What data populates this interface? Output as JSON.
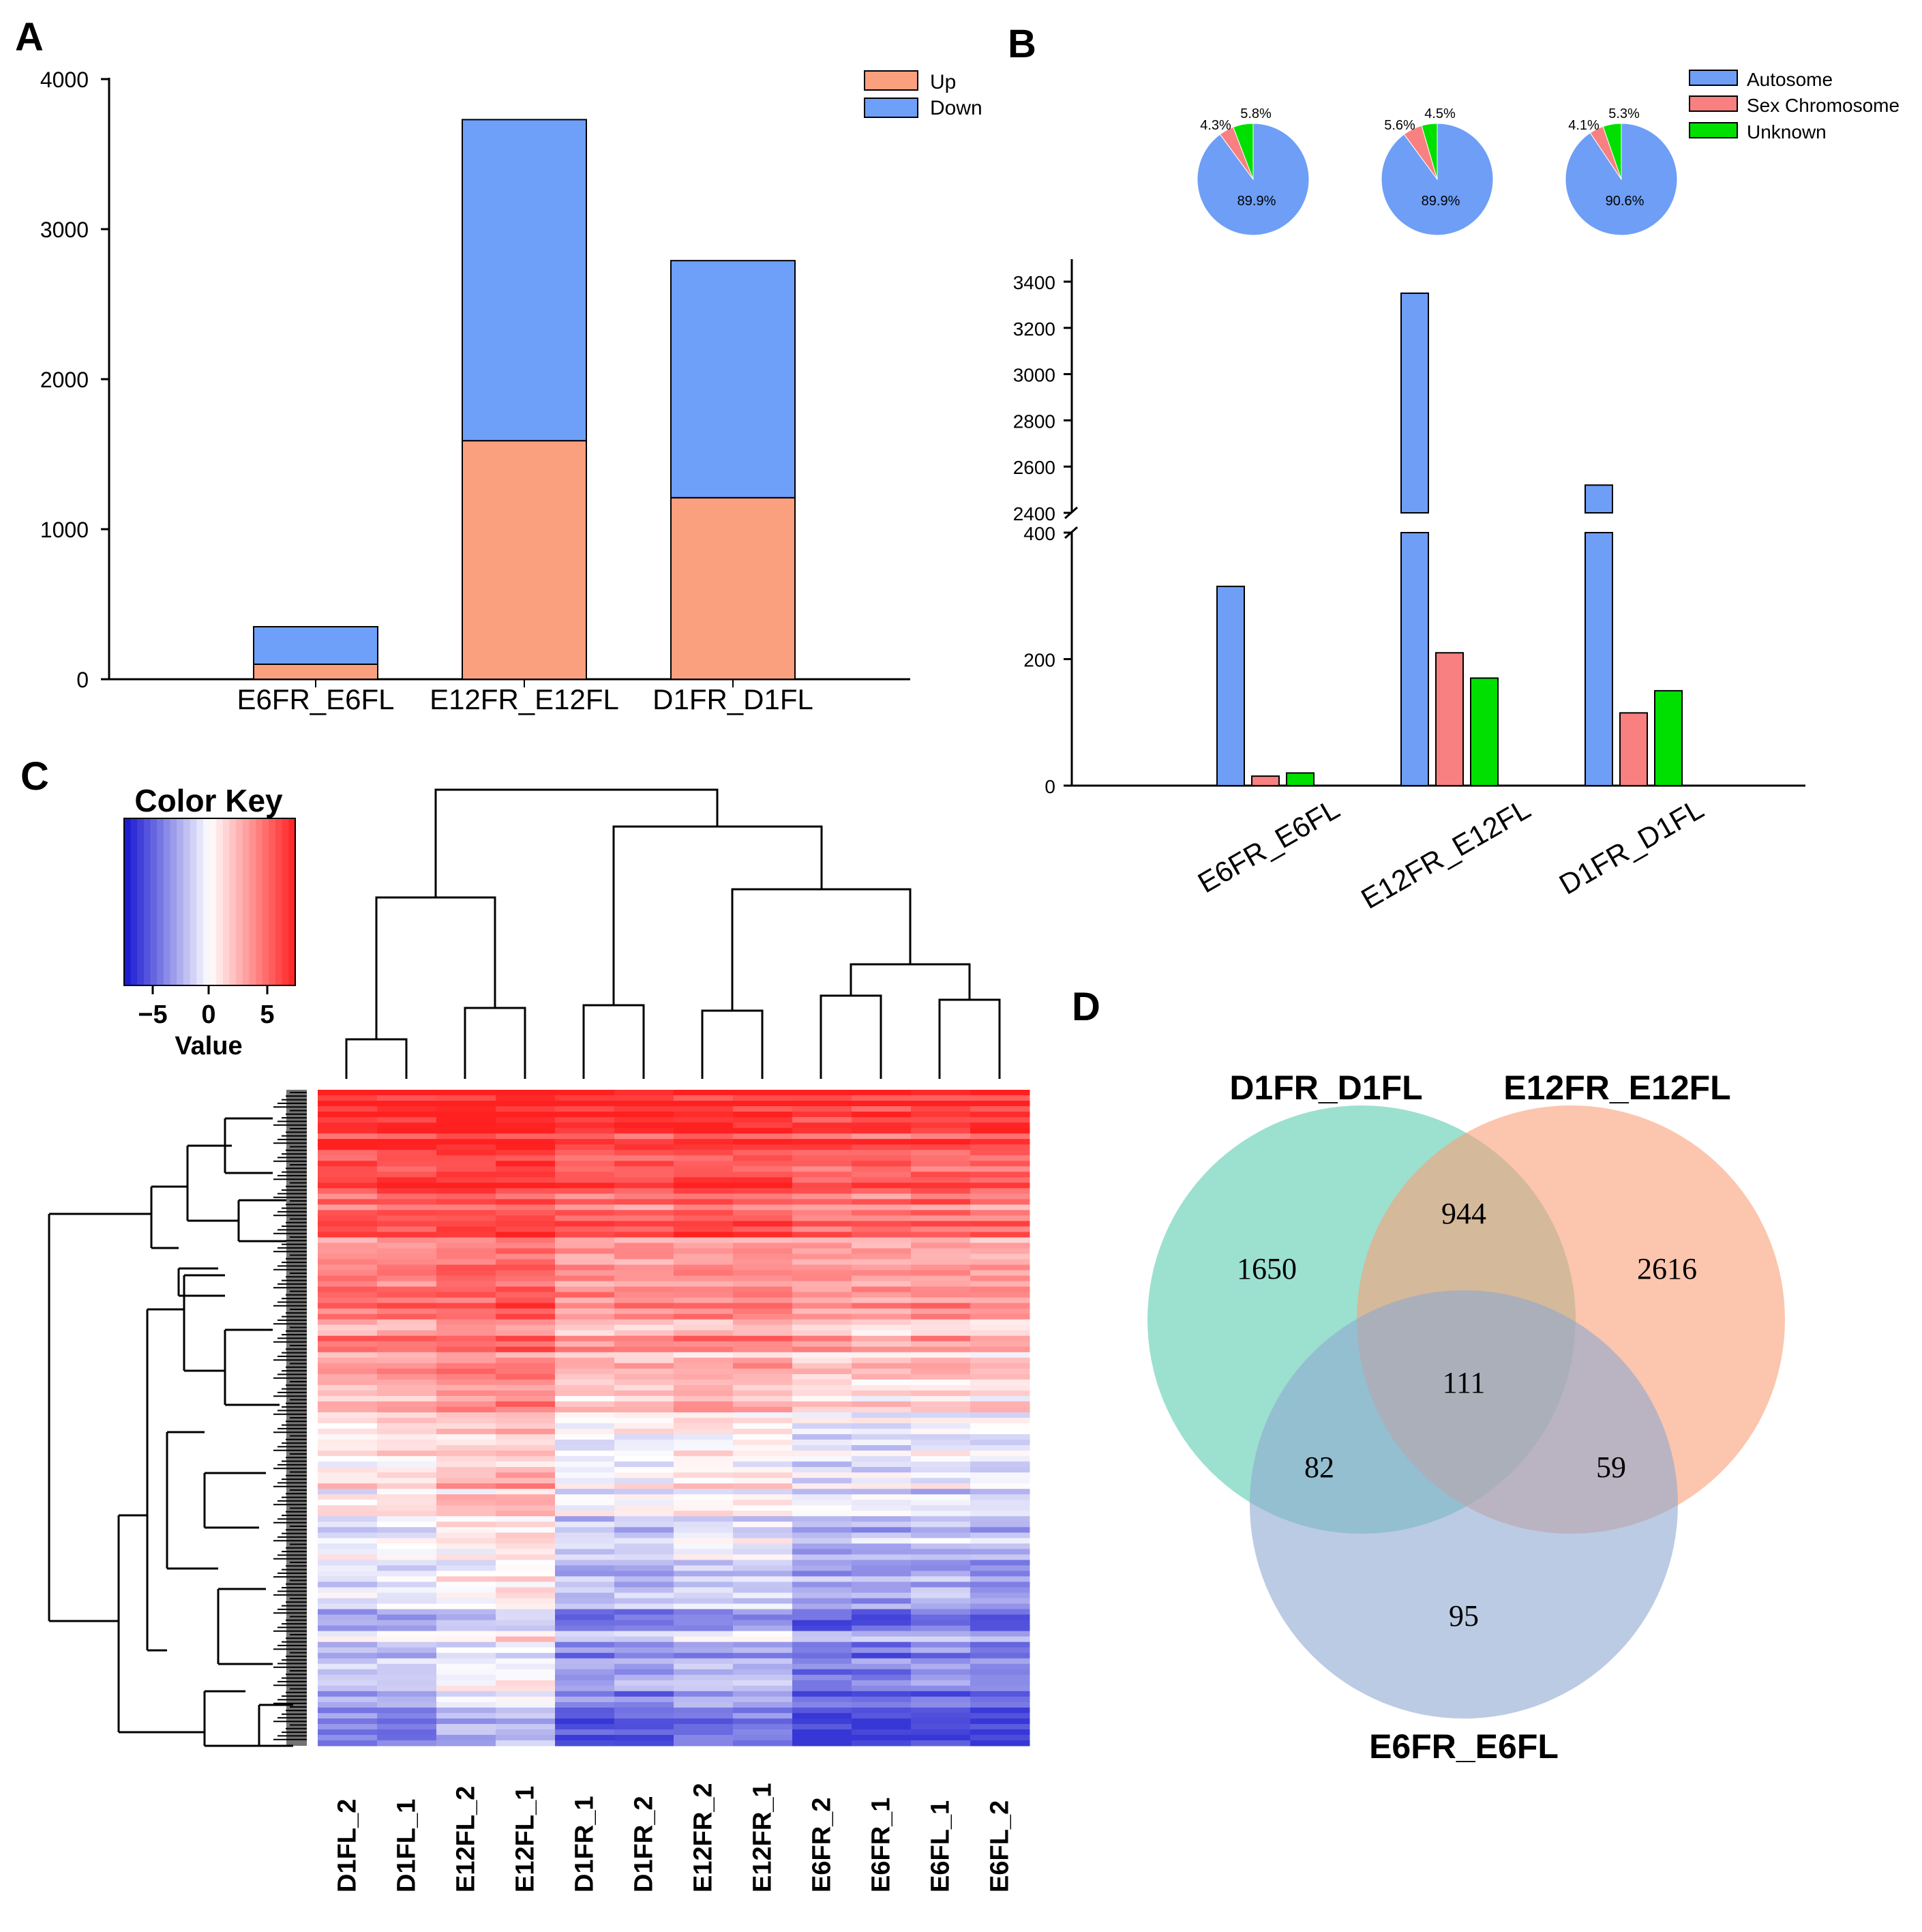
{
  "panel_labels": {
    "a": "A",
    "b": "B",
    "c": "C",
    "d": "D"
  },
  "colors": {
    "up": "#FBA07E",
    "down": "#6EA0FA",
    "autosome": "#6E9EF6",
    "sex": "#F88080",
    "unknown": "#00E000",
    "venn_d1": "#5ACCB0",
    "venn_e12": "#FA9E76",
    "venn_e6": "#8EA8D0",
    "heat_hi": "#FF2020",
    "heat_mid": "#FFFFFF",
    "heat_lo": "#0000D0"
  },
  "chart_data": [
    {
      "type": "bar",
      "id": "A",
      "stacked": true,
      "categories": [
        "E6FR_E6FL",
        "E12FR_E12FL",
        "D1FR_D1FL"
      ],
      "series": [
        {
          "name": "Up",
          "values": [
            100,
            1590,
            1210
          ]
        },
        {
          "name": "Down",
          "values": [
            250,
            2140,
            1580
          ]
        }
      ],
      "ylim": [
        0,
        4000
      ],
      "yticks": [
        0,
        1000,
        2000,
        3000,
        4000
      ],
      "legend": "top-right"
    },
    {
      "type": "bar",
      "id": "B",
      "categories": [
        "E6FR_E6FL",
        "E12FR_E12FL",
        "D1FR_D1FL"
      ],
      "series": [
        {
          "name": "Autosome",
          "values": [
            315,
            3350,
            2520
          ]
        },
        {
          "name": "Sex Chromosome",
          "values": [
            15,
            210,
            115
          ]
        },
        {
          "name": "Unknown",
          "values": [
            20,
            170,
            150
          ]
        }
      ],
      "broken_axis": {
        "lower": [
          0,
          400
        ],
        "upper": [
          2400,
          3450
        ]
      },
      "yticks_lower": [
        0,
        200,
        400
      ],
      "yticks_upper": [
        2400,
        2600,
        2800,
        3000,
        3200,
        3400
      ],
      "legend": "top-right"
    },
    {
      "type": "pie",
      "id": "B-pies",
      "labels": [
        "Autosome",
        "Sex Chromosome",
        "Unknown"
      ],
      "pies": [
        {
          "group": "E6FR_E6FL",
          "values": [
            89.9,
            4.3,
            5.8
          ],
          "labels": [
            "89.9%",
            "4.3%",
            "5.8%"
          ]
        },
        {
          "group": "E12FR_E12FL",
          "values": [
            89.9,
            5.6,
            4.5
          ],
          "labels": [
            "89.9%",
            "5.6%",
            "4.5%"
          ]
        },
        {
          "group": "D1FR_D1FL",
          "values": [
            90.6,
            4.1,
            5.3
          ],
          "labels": [
            "90.6%",
            "4.1%",
            "5.3%"
          ]
        }
      ]
    },
    {
      "type": "heatmap",
      "id": "C",
      "title": "Color Key",
      "xlabel": "Value",
      "key_ticks": [
        "−5",
        "0",
        "5"
      ],
      "key_range": [
        -7,
        7
      ],
      "columns": [
        "D1FL_2",
        "D1FL_1",
        "E12FL_2",
        "E12FL_1",
        "D1FR_1",
        "D1FR_2",
        "E12FR_2",
        "E12FR_1",
        "E6FR_2",
        "E6FR_1",
        "E6FL_1",
        "E6FL_2"
      ]
    },
    {
      "type": "venn",
      "id": "D",
      "sets": [
        "D1FR_D1FL",
        "E12FR_E12FL",
        "E6FR_E6FL"
      ],
      "regions": {
        "D1_only": "1650",
        "E12_only": "2616",
        "E6_only": "95",
        "D1_E12": "944",
        "D1_E6": "82",
        "E12_E6": "59",
        "all": "111"
      }
    }
  ]
}
